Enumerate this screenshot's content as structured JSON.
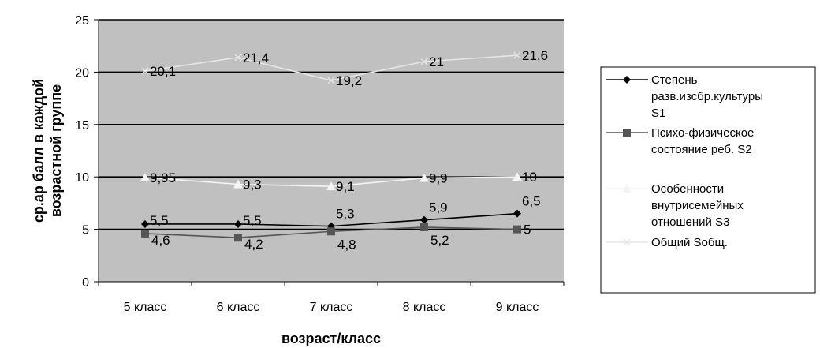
{
  "chart_data": {
    "type": "line",
    "categories": [
      "5 класс",
      "6 класс",
      "7 класс",
      "8 класс",
      "9 класс"
    ],
    "ylim": [
      0,
      25
    ],
    "yticks": [
      "0",
      "5",
      "10",
      "15",
      "20",
      "25"
    ],
    "xlabel": "возраст/класс",
    "ylabel_lines": [
      "ср.ар балл в каждой",
      "возрастной группе"
    ],
    "grid": true,
    "legend_position": "right",
    "plot_background": "#c0c0c0",
    "series": [
      {
        "name": "Степень разв.изсбр.культуры S1",
        "legend_lines": [
          "Степень",
          "разв.изсбр.культуры",
          "S1"
        ],
        "values": [
          5.5,
          5.5,
          5.3,
          5.9,
          6.5
        ],
        "labels": [
          "5,5",
          "5,5",
          "5,3",
          "5,9",
          "6,5"
        ],
        "color": "#000000",
        "marker": "diamond"
      },
      {
        "name": "Психо-физическое состояние реб. S2",
        "legend_lines": [
          "Психо-физическое",
          "состояние реб. S2"
        ],
        "values": [
          4.6,
          4.2,
          4.8,
          5.2,
          5
        ],
        "labels": [
          "4,6",
          "4,2",
          "4,8",
          "5,2",
          "5"
        ],
        "color": "#555555",
        "marker": "square"
      },
      {
        "name": "Особенности внутрисемейных отношений S3",
        "legend_lines": [
          "Особенности",
          "внутрисемейных",
          "отношений S3"
        ],
        "values": [
          9.95,
          9.3,
          9.1,
          9.9,
          10
        ],
        "labels": [
          "9,95",
          "9,3",
          "9,1",
          "9,9",
          "10"
        ],
        "color": "#f4f4f4",
        "marker": "triangle"
      },
      {
        "name": "Общий Sобщ.",
        "legend_lines": [
          "Общий Sобщ."
        ],
        "values": [
          20.1,
          21.4,
          19.2,
          21,
          21.6
        ],
        "labels": [
          "20,1",
          "21,4",
          "19,2",
          "21",
          "21,6"
        ],
        "color": "#e6e6e6",
        "marker": "x"
      }
    ]
  }
}
